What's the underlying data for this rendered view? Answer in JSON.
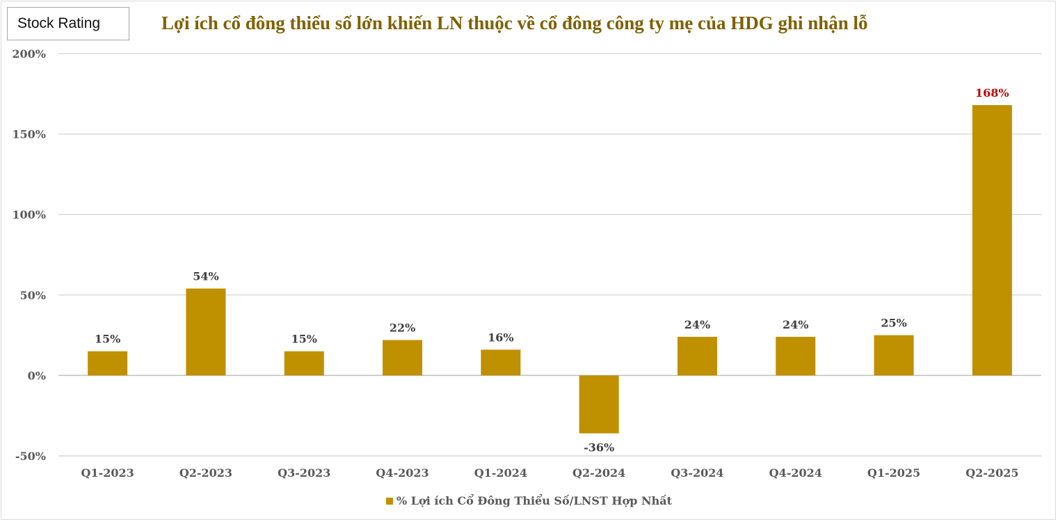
{
  "badge": "Stock Rating",
  "chart_data": {
    "type": "bar",
    "title": "Lợi ích cổ đông thiểu số lớn khiến LN thuộc về cổ đông công ty mẹ của HDG ghi nhận lỗ",
    "categories": [
      "Q1-2023",
      "Q2-2023",
      "Q3-2023",
      "Q4-2023",
      "Q1-2024",
      "Q2-2024",
      "Q3-2024",
      "Q4-2024",
      "Q1-2025",
      "Q2-2025"
    ],
    "series": [
      {
        "name": "% Lợi ích Cổ Đông Thiểu Số/LNST Hợp Nhất",
        "values": [
          15,
          54,
          15,
          22,
          16,
          -36,
          24,
          24,
          25,
          168
        ],
        "color": "#bf9000"
      }
    ],
    "data_labels": [
      "15%",
      "54%",
      "15%",
      "22%",
      "16%",
      "-36%",
      "24%",
      "24%",
      "25%",
      "168%"
    ],
    "highlight_label_color": "#c00000",
    "yticks": [
      "-50%",
      "0%",
      "50%",
      "100%",
      "150%",
      "200%"
    ],
    "ylim": [
      -50,
      200
    ],
    "ytick_step": 50,
    "grid": true,
    "legend": "bottom",
    "xlabel": "",
    "ylabel": ""
  }
}
